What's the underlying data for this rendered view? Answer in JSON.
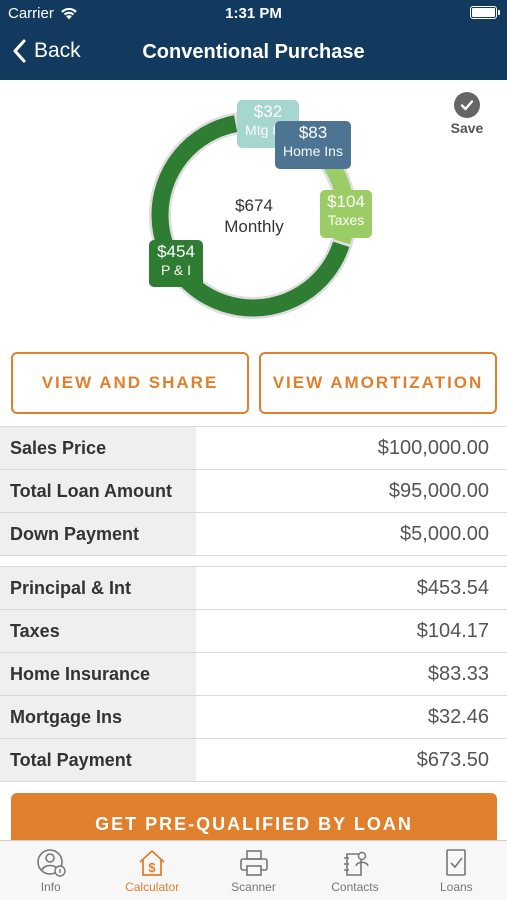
{
  "status_bar": {
    "carrier": "Carrier",
    "time": "1:31 PM"
  },
  "nav": {
    "back_label": "Back",
    "title": "Conventional Purchase"
  },
  "chart": {
    "center_amount": "$674",
    "center_label": "Monthly",
    "save_label": "Save",
    "segments": [
      {
        "amount": "$454",
        "label": "P & I",
        "value": 453.54,
        "color": "#2e7d32"
      },
      {
        "amount": "$104",
        "label": "Taxes",
        "value": 104.17,
        "color": "#9ccc65"
      },
      {
        "amount": "$83",
        "label": "Home Ins",
        "value": 83.33,
        "color": "#4e7494"
      },
      {
        "amount": "$32",
        "label": "Mtg Ins",
        "value": 32.46,
        "color": "#a5d6cf"
      }
    ]
  },
  "buttons": {
    "view_share": "VIEW AND SHARE",
    "view_amortization": "VIEW AMORTIZATION",
    "prequalify": "GET PRE-QUALIFIED BY LOAN"
  },
  "loan_table": [
    {
      "label": "Sales Price",
      "value": "$100,000.00"
    },
    {
      "label": "Total Loan Amount",
      "value": "$95,000.00"
    },
    {
      "label": "Down Payment",
      "value": "$5,000.00"
    }
  ],
  "payment_table": [
    {
      "label": "Principal & Int",
      "value": "$453.54"
    },
    {
      "label": "Taxes",
      "value": "$104.17"
    },
    {
      "label": "Home Insurance",
      "value": "$83.33"
    },
    {
      "label": "Mortgage Ins",
      "value": "$32.46"
    },
    {
      "label": "Total Payment",
      "value": "$673.50"
    }
  ],
  "tabs": [
    {
      "label": "Info",
      "icon": "info-person-icon"
    },
    {
      "label": "Calculator",
      "icon": "calculator-house-icon",
      "active": true
    },
    {
      "label": "Scanner",
      "icon": "scanner-printer-icon"
    },
    {
      "label": "Contacts",
      "icon": "contacts-icon"
    },
    {
      "label": "Loans",
      "icon": "loans-document-icon"
    }
  ],
  "colors": {
    "navy": "#123a5e",
    "accent": "#e07f2c"
  }
}
